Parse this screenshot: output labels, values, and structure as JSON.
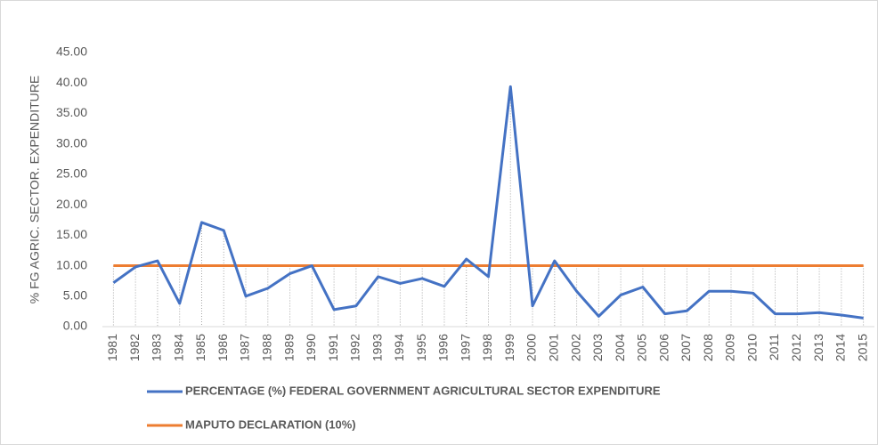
{
  "chart_data": {
    "type": "line",
    "y_label": "% FG AGRIC. SECTOR. EXPENDITURE",
    "categories": [
      "1981",
      "1982",
      "1983",
      "1984",
      "1985",
      "1986",
      "1987",
      "1988",
      "1989",
      "1990",
      "1991",
      "1992",
      "1993",
      "1994",
      "1995",
      "1996",
      "1997",
      "1998",
      "1999",
      "2000",
      "2001",
      "2002",
      "2003",
      "2004",
      "2005",
      "2006",
      "2007",
      "2008",
      "2009",
      "2010",
      "2011",
      "2012",
      "2013",
      "2014",
      "2015"
    ],
    "series": [
      {
        "name": "PERCENTAGE (%) FEDERAL GOVERNMENT AGRICULTURAL SECTOR EXPENDITURE",
        "color": "#4472c4",
        "values": [
          7.2,
          9.8,
          10.8,
          3.8,
          17.1,
          15.8,
          5.0,
          6.3,
          8.7,
          10.0,
          2.8,
          3.4,
          8.2,
          7.1,
          7.9,
          6.6,
          11.1,
          8.2,
          39.4,
          3.4,
          10.8,
          5.8,
          1.7,
          5.2,
          6.5,
          2.1,
          2.6,
          5.8,
          5.8,
          5.5,
          2.1,
          2.1,
          2.3,
          1.9,
          1.4
        ]
      },
      {
        "name": "MAPUTO DECLARATION (10%)",
        "color": "#ed7d31",
        "values": [
          10,
          10,
          10,
          10,
          10,
          10,
          10,
          10,
          10,
          10,
          10,
          10,
          10,
          10,
          10,
          10,
          10,
          10,
          10,
          10,
          10,
          10,
          10,
          10,
          10,
          10,
          10,
          10,
          10,
          10,
          10,
          10,
          10,
          10,
          10
        ]
      }
    ],
    "ylim": [
      0,
      45
    ],
    "yticks": [
      {
        "value": 0,
        "label": "0.00"
      },
      {
        "value": 5,
        "label": "5.00"
      },
      {
        "value": 10,
        "label": "10.00"
      },
      {
        "value": 15,
        "label": "15.00"
      },
      {
        "value": 20,
        "label": "20.00"
      },
      {
        "value": 25,
        "label": "25.00"
      },
      {
        "value": 30,
        "label": "30.00"
      },
      {
        "value": 35,
        "label": "35.00"
      },
      {
        "value": 40,
        "label": "40.00"
      },
      {
        "value": 45,
        "label": "45.00"
      }
    ],
    "grid": false,
    "drop_lines": true
  }
}
